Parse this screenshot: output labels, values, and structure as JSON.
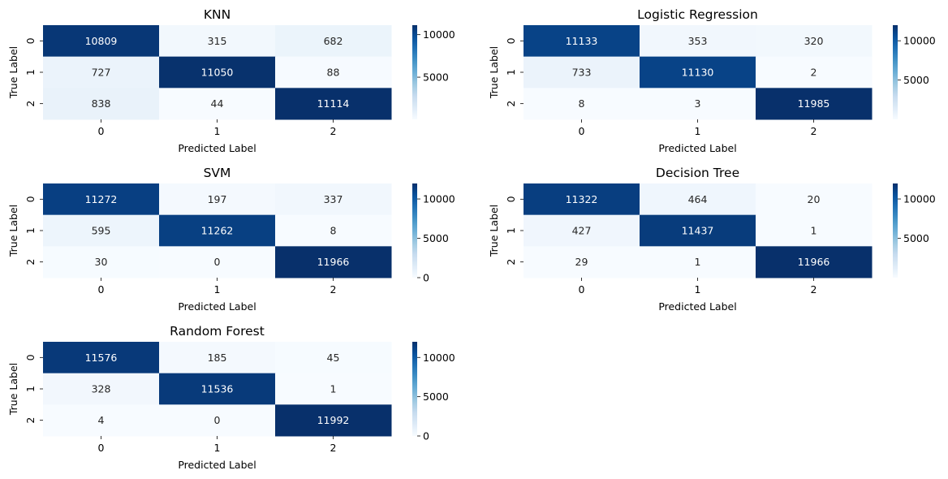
{
  "chart_data": [
    {
      "type": "heatmap",
      "title": "KNN",
      "xlabel": "Predicted Label",
      "ylabel": "True Label",
      "x_categories": [
        "0",
        "1",
        "2"
      ],
      "y_categories": [
        "0",
        "1",
        "2"
      ],
      "values": [
        [
          10809,
          315,
          682
        ],
        [
          727,
          11050,
          88
        ],
        [
          838,
          44,
          11114
        ]
      ],
      "colormap": "Blues",
      "colorbar": {
        "min": 44,
        "max": 11114,
        "ticks": [
          5000,
          10000
        ]
      }
    },
    {
      "type": "heatmap",
      "title": "Logistic Regression",
      "xlabel": "Predicted Label",
      "ylabel": "True Label",
      "x_categories": [
        "0",
        "1",
        "2"
      ],
      "y_categories": [
        "0",
        "1",
        "2"
      ],
      "values": [
        [
          11133,
          353,
          320
        ],
        [
          733,
          11130,
          2
        ],
        [
          8,
          3,
          11985
        ]
      ],
      "colormap": "Blues",
      "colorbar": {
        "min": 2,
        "max": 11985,
        "ticks": [
          5000,
          10000
        ]
      }
    },
    {
      "type": "heatmap",
      "title": "SVM",
      "xlabel": "Predicted Label",
      "ylabel": "True Label",
      "x_categories": [
        "0",
        "1",
        "2"
      ],
      "y_categories": [
        "0",
        "1",
        "2"
      ],
      "values": [
        [
          11272,
          197,
          337
        ],
        [
          595,
          11262,
          8
        ],
        [
          30,
          0,
          11966
        ]
      ],
      "colormap": "Blues",
      "colorbar": {
        "min": 0,
        "max": 11966,
        "ticks": [
          0,
          5000,
          10000
        ]
      }
    },
    {
      "type": "heatmap",
      "title": "Decision Tree",
      "xlabel": "Predicted Label",
      "ylabel": "True Label",
      "x_categories": [
        "0",
        "1",
        "2"
      ],
      "y_categories": [
        "0",
        "1",
        "2"
      ],
      "values": [
        [
          11322,
          464,
          20
        ],
        [
          427,
          11437,
          1
        ],
        [
          29,
          1,
          11966
        ]
      ],
      "colormap": "Blues",
      "colorbar": {
        "min": 1,
        "max": 11966,
        "ticks": [
          5000,
          10000
        ]
      }
    },
    {
      "type": "heatmap",
      "title": "Random Forest",
      "xlabel": "Predicted Label",
      "ylabel": "True Label",
      "x_categories": [
        "0",
        "1",
        "2"
      ],
      "y_categories": [
        "0",
        "1",
        "2"
      ],
      "values": [
        [
          11576,
          185,
          45
        ],
        [
          328,
          11536,
          1
        ],
        [
          4,
          0,
          11992
        ]
      ],
      "colormap": "Blues",
      "colorbar": {
        "min": 0,
        "max": 11992,
        "ticks": [
          0,
          5000,
          10000
        ]
      }
    }
  ]
}
